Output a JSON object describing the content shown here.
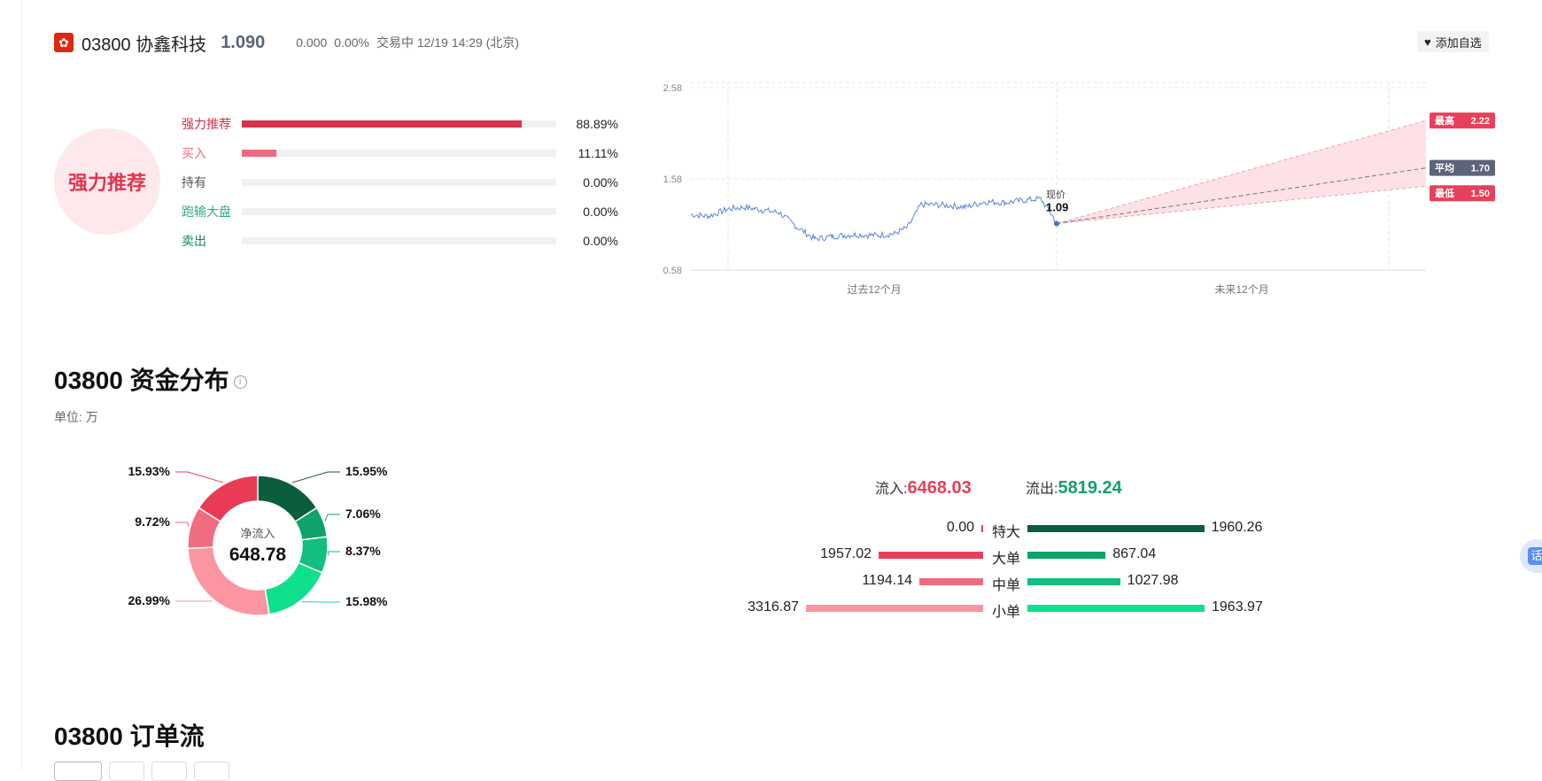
{
  "header": {
    "flag_icon": "hk-flag-icon",
    "code": "03800",
    "name": "协鑫科技",
    "price": "1.090",
    "change": "0.000",
    "change_pct": "0.00%",
    "status": "交易中 12/19 14:29 (北京)",
    "watch_label": "添加自选"
  },
  "rating": {
    "badge": "强力推荐",
    "items": [
      {
        "label": "强力推荐",
        "pct": "88.89%",
        "value": 0.8889,
        "color": "#d8324a"
      },
      {
        "label": "买入",
        "pct": "11.11%",
        "value": 0.1111,
        "color": "#ee6b7f"
      },
      {
        "label": "持有",
        "pct": "0.00%",
        "value": 0,
        "color": "#555555"
      },
      {
        "label": "跑输大盘",
        "pct": "0.00%",
        "value": 0,
        "color": "#2eae84"
      },
      {
        "label": "卖出",
        "pct": "0.00%",
        "value": 0,
        "color": "#14885f"
      }
    ]
  },
  "price_chart": {
    "y_ticks": [
      "2.58",
      "1.58",
      "0.58"
    ],
    "x_labels": [
      "过去12个月",
      "未来12个月"
    ],
    "current_label": "现价",
    "current_value": "1.09",
    "targets": [
      {
        "label": "最高",
        "value": "2.22",
        "color": "#e8405a"
      },
      {
        "label": "平均",
        "value": "1.70",
        "color": "#5b6478"
      },
      {
        "label": "最低",
        "value": "1.50",
        "color": "#e8405a"
      }
    ]
  },
  "fund_section": {
    "title": "03800 资金分布",
    "unit": "单位: 万",
    "donut_center_label": "净流入",
    "donut_center_value": "648.78",
    "donut": [
      {
        "pct": "15.95%",
        "value": 15.95,
        "color": "#0b5e3c"
      },
      {
        "pct": "7.06%",
        "value": 7.06,
        "color": "#0fa36b"
      },
      {
        "pct": "8.37%",
        "value": 8.37,
        "color": "#13be7f"
      },
      {
        "pct": "15.98%",
        "value": 15.98,
        "color": "#10e08c"
      },
      {
        "pct": "26.99%",
        "value": 26.99,
        "color": "#fb95a2"
      },
      {
        "pct": "9.72%",
        "value": 9.72,
        "color": "#f06c80"
      },
      {
        "pct": "15.93%",
        "value": 15.93,
        "color": "#ea3b56"
      }
    ],
    "inflow_label": "流入:",
    "inflow_value": "6468.03",
    "outflow_label": "流出:",
    "outflow_value": "5819.24",
    "rows": [
      {
        "cat": "特大",
        "in": "0.00",
        "in_val": 0,
        "out": "1960.26",
        "out_val": 1960.26,
        "in_color": "#e8405a",
        "out_color": "#0b5e3c"
      },
      {
        "cat": "大单",
        "in": "1957.02",
        "in_val": 1957.02,
        "out": "867.04",
        "out_val": 867.04,
        "in_color": "#e8405a",
        "out_color": "#0fa36b"
      },
      {
        "cat": "中单",
        "in": "1194.14",
        "in_val": 1194.14,
        "out": "1027.98",
        "out_val": 1027.98,
        "in_color": "#ee6b7f",
        "out_color": "#13be7f"
      },
      {
        "cat": "小单",
        "in": "3316.87",
        "in_val": 3316.87,
        "out": "1963.97",
        "out_val": 1963.97,
        "in_color": "#fb95a2",
        "out_color": "#10e08c"
      }
    ]
  },
  "order_flow": {
    "title": "03800 订单流"
  }
}
